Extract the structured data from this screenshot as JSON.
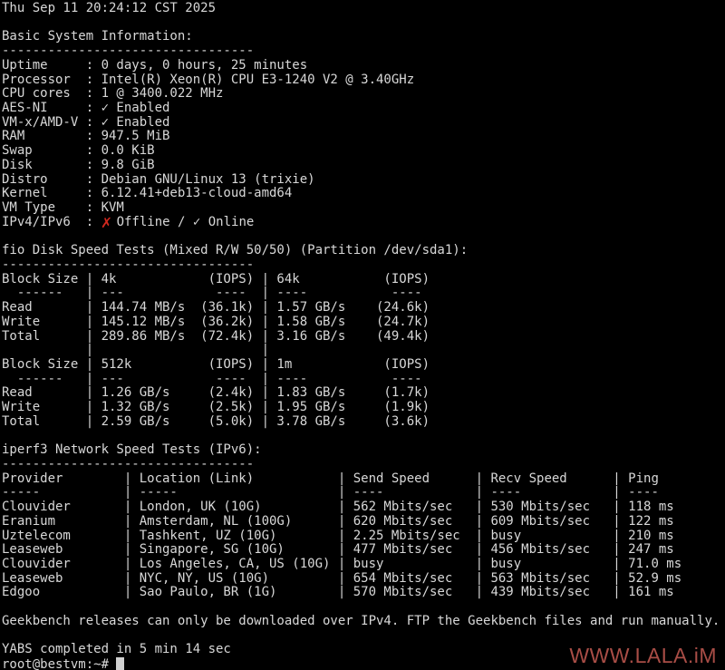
{
  "colors": {
    "background": "#000000",
    "foreground": "#d8d8d8",
    "cross_red": "#d0281e",
    "watermark_red": "#a84d46"
  },
  "terminal": {
    "datetime": "Thu Sep 11 20:24:12 CST 2025",
    "basic": {
      "title": "Basic System Information:",
      "separator": "---------------------------------",
      "fields": [
        {
          "label": "Uptime",
          "value": "0 days, 0 hours, 25 minutes"
        },
        {
          "label": "Processor",
          "value": "Intel(R) Xeon(R) CPU E3-1240 V2 @ 3.40GHz"
        },
        {
          "label": "CPU cores",
          "value": "1 @ 3400.022 MHz"
        },
        {
          "label": "AES-NI",
          "value": "✓ Enabled"
        },
        {
          "label": "VM-x/AMD-V",
          "value": "✓ Enabled"
        },
        {
          "label": "RAM",
          "value": "947.5 MiB"
        },
        {
          "label": "Swap",
          "value": "0.0 KiB"
        },
        {
          "label": "Disk",
          "value": "9.8 GiB"
        },
        {
          "label": "Distro",
          "value": "Debian GNU/Linux 13 (trixie)"
        },
        {
          "label": "Kernel",
          "value": "6.12.41+deb13-cloud-amd64"
        },
        {
          "label": "VM Type",
          "value": "KVM"
        }
      ],
      "network_status": {
        "label": "IPv4/IPv6",
        "cross_mark": "✗",
        "offline_text": "Offline",
        "divider": " / ",
        "online_text": "✓ Online"
      }
    },
    "fio": {
      "title": "fio Disk Speed Tests (Mixed R/W 50/50) (Partition /dev/sda1):",
      "separator": "---------------------------------",
      "header_label": "Block Size",
      "iops_label": "(IOPS)",
      "sep_cells": [
        "  ------",
        "---            ----",
        "----           ----"
      ],
      "tables": [
        {
          "block_sizes": [
            "4k",
            "64k"
          ],
          "rows": [
            {
              "label": "Read",
              "cells": [
                {
                  "speed": "144.74 MB/s",
                  "iops": "(36.1k)"
                },
                {
                  "speed": "1.57 GB/s",
                  "iops": "(24.6k)"
                }
              ]
            },
            {
              "label": "Write",
              "cells": [
                {
                  "speed": "145.12 MB/s",
                  "iops": "(36.2k)"
                },
                {
                  "speed": "1.58 GB/s",
                  "iops": "(24.7k)"
                }
              ]
            },
            {
              "label": "Total",
              "cells": [
                {
                  "speed": "289.86 MB/s",
                  "iops": "(72.4k)"
                },
                {
                  "speed": "3.16 GB/s",
                  "iops": "(49.4k)"
                }
              ]
            }
          ]
        },
        {
          "block_sizes": [
            "512k",
            "1m"
          ],
          "rows": [
            {
              "label": "Read",
              "cells": [
                {
                  "speed": "1.26 GB/s",
                  "iops": "(2.4k)"
                },
                {
                  "speed": "1.83 GB/s",
                  "iops": "(1.7k)"
                }
              ]
            },
            {
              "label": "Write",
              "cells": [
                {
                  "speed": "1.32 GB/s",
                  "iops": "(2.5k)"
                },
                {
                  "speed": "1.95 GB/s",
                  "iops": "(1.9k)"
                }
              ]
            },
            {
              "label": "Total",
              "cells": [
                {
                  "speed": "2.59 GB/s",
                  "iops": "(5.0k)"
                },
                {
                  "speed": "3.78 GB/s",
                  "iops": "(3.6k)"
                }
              ]
            }
          ]
        }
      ]
    },
    "iperf": {
      "title": "iperf3 Network Speed Tests (IPv6):",
      "separator": "---------------------------------",
      "columns": [
        "Provider",
        "Location (Link)",
        "Send Speed",
        "Recv Speed",
        "Ping"
      ],
      "sep_cells": [
        "-----",
        "-----",
        "----",
        "----",
        "----"
      ],
      "rows": [
        [
          "Clouvider",
          "London, UK (10G)",
          "562 Mbits/sec",
          "530 Mbits/sec",
          "118 ms"
        ],
        [
          "Eranium",
          "Amsterdam, NL (100G)",
          "620 Mbits/sec",
          "609 Mbits/sec",
          "122 ms"
        ],
        [
          "Uztelecom",
          "Tashkent, UZ (10G)",
          "2.25 Mbits/sec",
          "busy",
          "210 ms"
        ],
        [
          "Leaseweb",
          "Singapore, SG (10G)",
          "477 Mbits/sec",
          "456 Mbits/sec",
          "247 ms"
        ],
        [
          "Clouvider",
          "Los Angeles, CA, US (10G)",
          "busy",
          "busy",
          "71.0 ms"
        ],
        [
          "Leaseweb",
          "NYC, NY, US (10G)",
          "654 Mbits/sec",
          "563 Mbits/sec",
          "52.9 ms"
        ],
        [
          "Edgoo",
          "Sao Paulo, BR (1G)",
          "570 Mbits/sec",
          "439 Mbits/sec",
          "161 ms"
        ]
      ]
    },
    "geekbench_note": "Geekbench releases can only be downloaded over IPv4. FTP the Geekbench files and run manually.",
    "completed": "YABS completed in 5 min 14 sec",
    "prompt": "root@bestvm:~#"
  },
  "watermark": {
    "text": "WWW.LALA.iM"
  }
}
